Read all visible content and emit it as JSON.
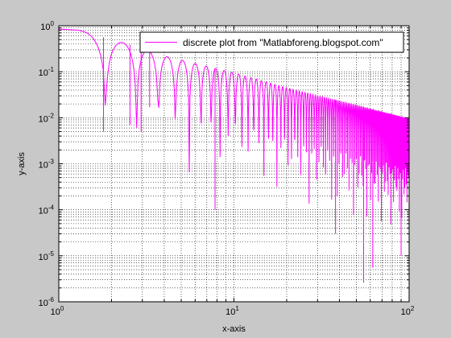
{
  "chart_data": {
    "type": "line",
    "xscale": "log",
    "yscale": "log",
    "xlim": [
      1,
      100
    ],
    "ylim": [
      1e-06,
      1
    ],
    "grid": true,
    "minor_grid": true,
    "xlabel": "x-axis",
    "ylabel": "y-axis",
    "legend_placement": "top-right",
    "x_ticks": [
      {
        "base": "10",
        "exp": "0",
        "value": 1
      },
      {
        "base": "10",
        "exp": "1",
        "value": 10
      },
      {
        "base": "10",
        "exp": "2",
        "value": 100
      }
    ],
    "y_ticks": [
      {
        "base": "10",
        "exp": "0",
        "value": 1
      },
      {
        "base": "10",
        "exp": "-1",
        "value": 0.1
      },
      {
        "base": "10",
        "exp": "-2",
        "value": 0.01
      },
      {
        "base": "10",
        "exp": "-3",
        "value": 0.001
      },
      {
        "base": "10",
        "exp": "-4",
        "value": 0.0001
      },
      {
        "base": "10",
        "exp": "-5",
        "value": 1e-05
      },
      {
        "base": "10",
        "exp": "-6",
        "value": 1e-06
      }
    ],
    "series": [
      {
        "name": "discrete plot from \"Matlabforeng.blogspot.com\"",
        "color": "#ff00ff",
        "x_range": [
          1,
          100
        ],
        "points": 2000,
        "envelope": [
          [
            1,
            0.85
          ],
          [
            1.3,
            0.8
          ],
          [
            2.8,
            0.35
          ],
          [
            4.0,
            0.22
          ],
          [
            10,
            0.095
          ],
          [
            20,
            0.045
          ],
          [
            100,
            0.0095
          ]
        ],
        "notable_dips": [
          [
            1.8,
            0.005
          ],
          [
            2.55,
            0.007
          ],
          [
            2.95,
            0.005
          ],
          [
            3.3,
            0.017
          ],
          [
            7.8,
            0.0001
          ],
          [
            38,
            3e-05
          ],
          [
            55,
            2.6e-06
          ],
          [
            62,
            5.5e-06
          ],
          [
            90,
            1e-05
          ]
        ]
      }
    ]
  },
  "colors": {
    "figure_background": "#c8c8c8",
    "plot_background": "#ffffff",
    "grid": "#000000",
    "line": "#ff00ff"
  }
}
